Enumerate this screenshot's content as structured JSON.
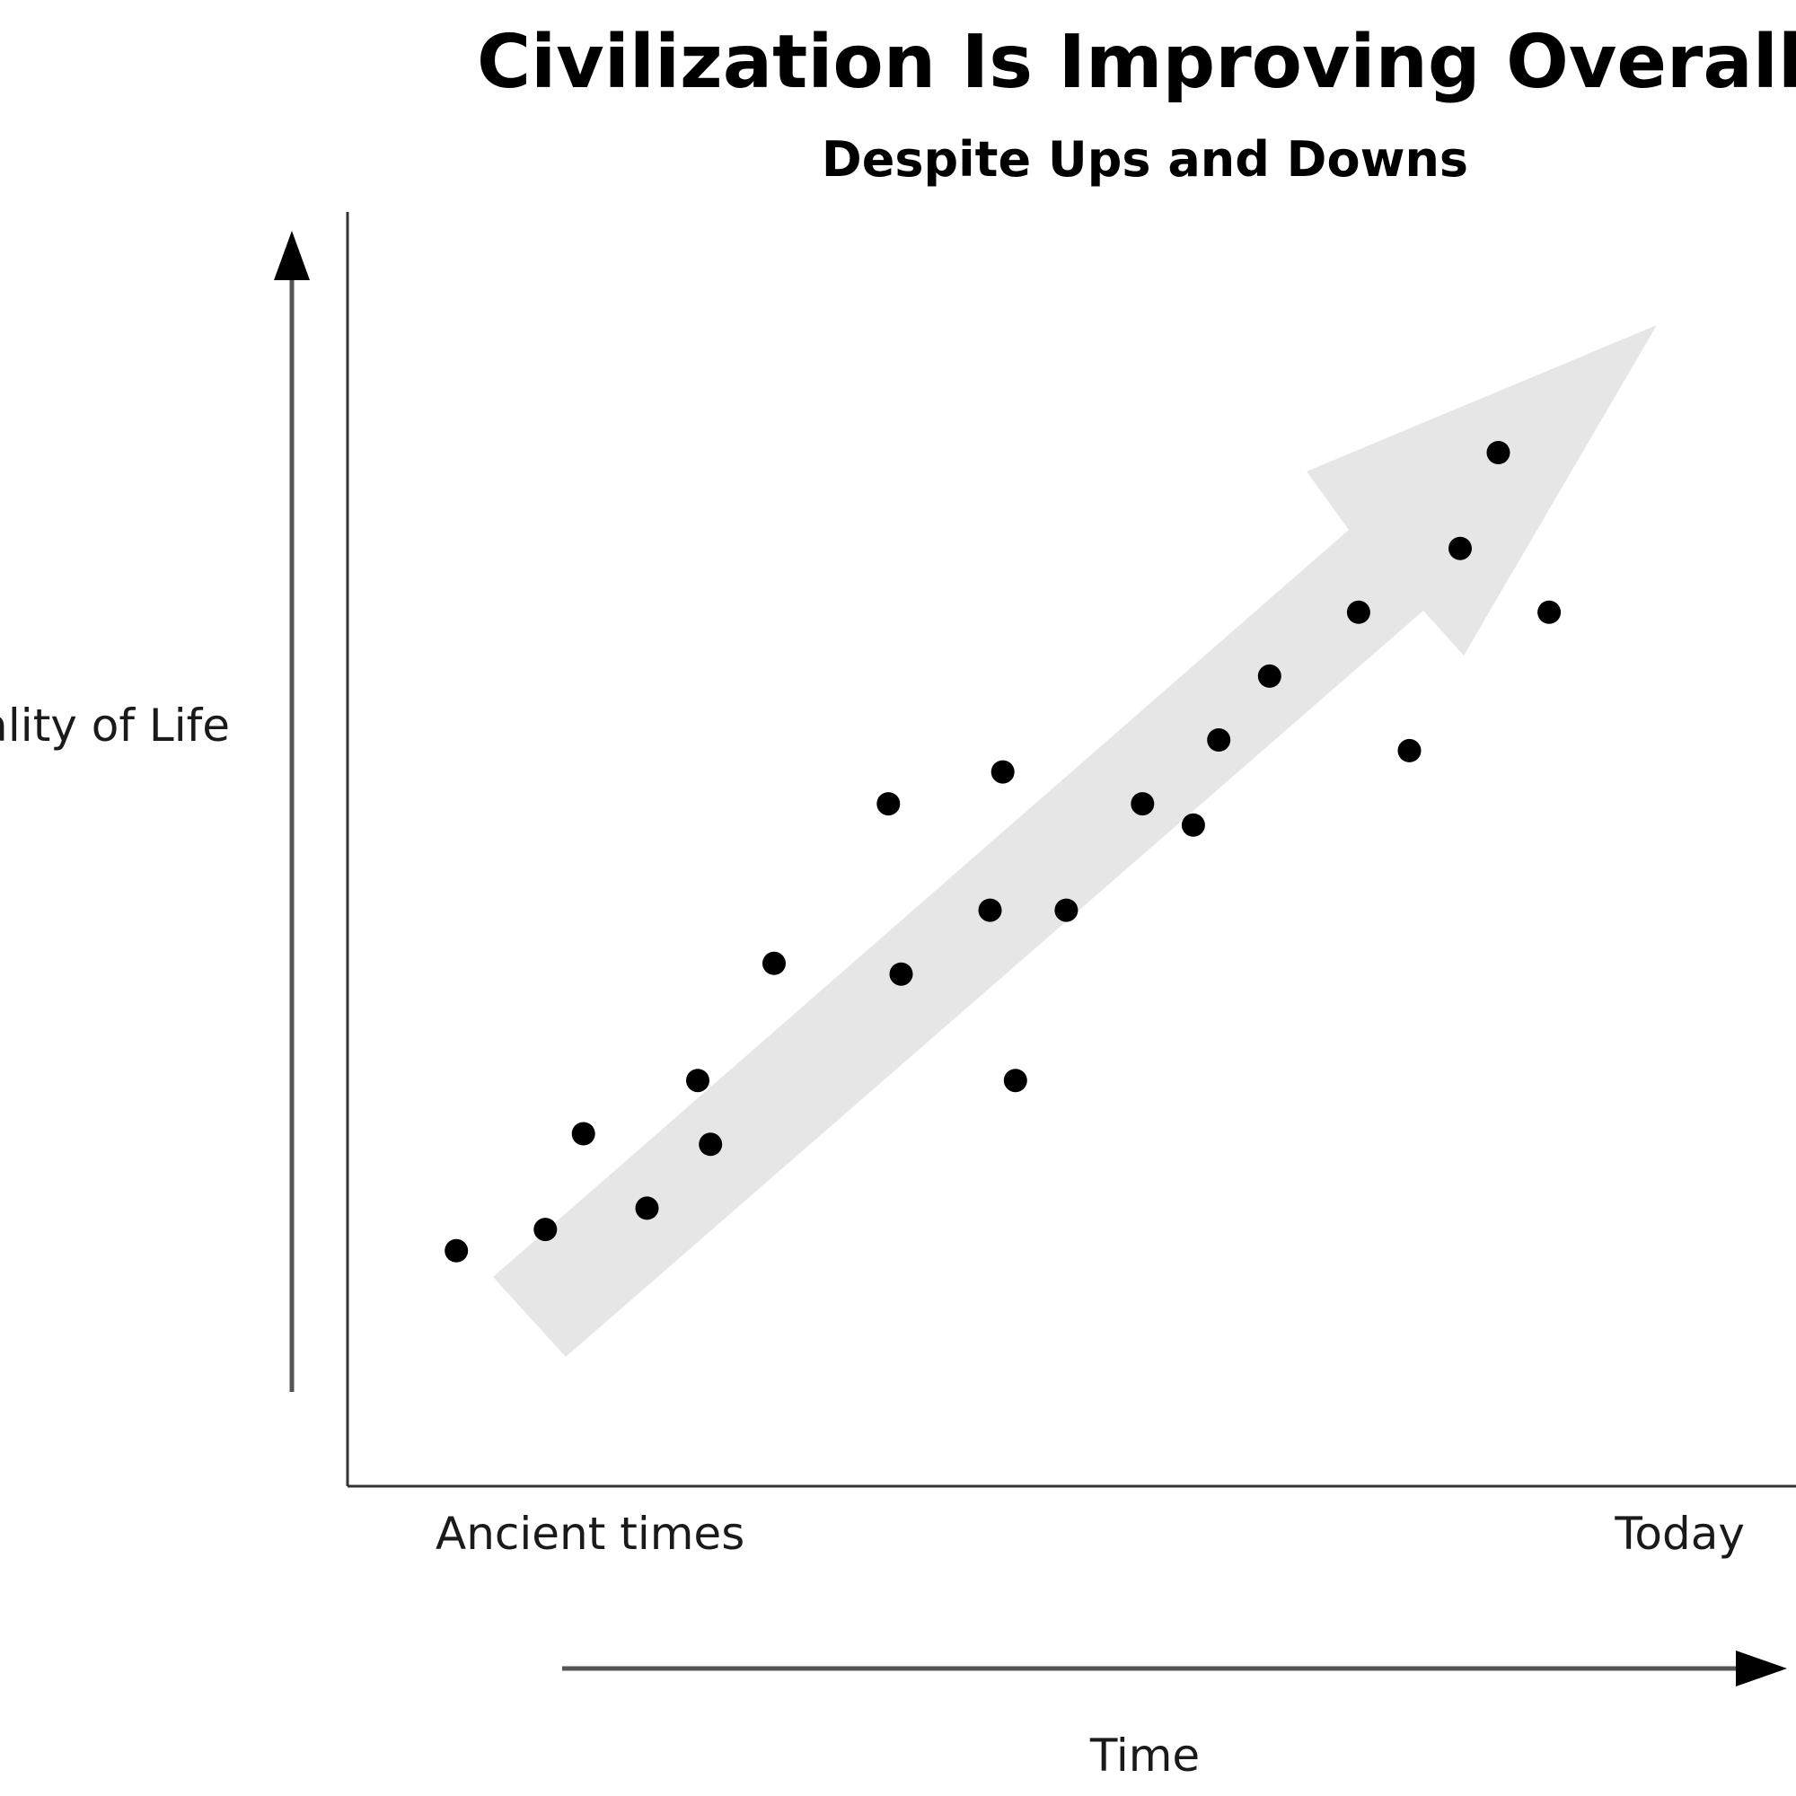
{
  "chart_data": {
    "type": "scatter",
    "title": "Civilization Is Improving Overall",
    "subtitle": "Despite Ups and Downs",
    "xlabel": "Time",
    "ylabel": "Quality of Life",
    "x_tick_labels": [
      "Ancient times",
      "Today"
    ],
    "grid": false,
    "legend": "none",
    "trend": "upward arrow",
    "colors": {
      "points": "#000000",
      "trend_arrow": "#e6e6e6",
      "axes": "#333333"
    },
    "points": [
      {
        "x": 0.08,
        "y": 0.12
      },
      {
        "x": 0.15,
        "y": 0.14
      },
      {
        "x": 0.18,
        "y": 0.23
      },
      {
        "x": 0.23,
        "y": 0.16
      },
      {
        "x": 0.27,
        "y": 0.28
      },
      {
        "x": 0.28,
        "y": 0.22
      },
      {
        "x": 0.33,
        "y": 0.39
      },
      {
        "x": 0.42,
        "y": 0.54
      },
      {
        "x": 0.43,
        "y": 0.38
      },
      {
        "x": 0.5,
        "y": 0.44
      },
      {
        "x": 0.51,
        "y": 0.57
      },
      {
        "x": 0.52,
        "y": 0.28
      },
      {
        "x": 0.56,
        "y": 0.44
      },
      {
        "x": 0.62,
        "y": 0.54
      },
      {
        "x": 0.66,
        "y": 0.52
      },
      {
        "x": 0.68,
        "y": 0.6
      },
      {
        "x": 0.72,
        "y": 0.66
      },
      {
        "x": 0.79,
        "y": 0.72
      },
      {
        "x": 0.83,
        "y": 0.59
      },
      {
        "x": 0.87,
        "y": 0.78
      },
      {
        "x": 0.9,
        "y": 0.87
      },
      {
        "x": 0.94,
        "y": 0.72
      }
    ]
  }
}
